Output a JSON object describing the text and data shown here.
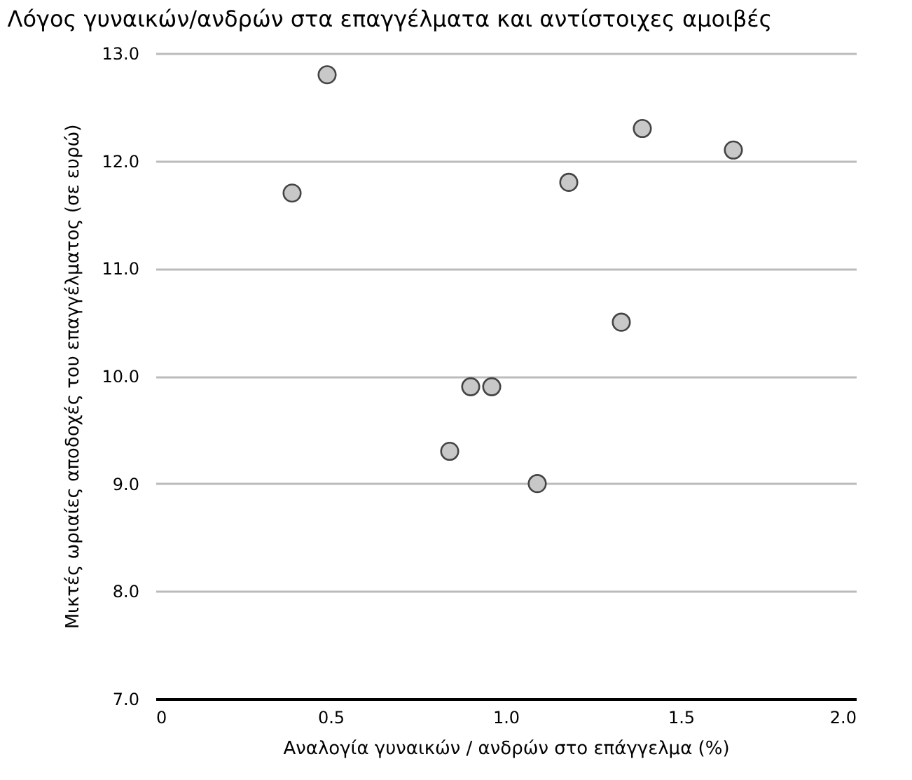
{
  "chart_data": {
    "type": "scatter",
    "title": "Λόγος γυναικών/ανδρών στα επαγγέλματα και αντίστοιχες αμοιβές",
    "xlabel": "Αναλογία γυναικών / ανδρών στο επάγγελμα (%)",
    "ylabel": "Μικτές ωριαίες αποδοχές του επαγγέλματος (σε ευρώ)",
    "x": [
      0.49,
      0.39,
      1.39,
      1.65,
      1.18,
      1.33,
      0.9,
      0.96,
      0.84,
      1.09
    ],
    "series": [
      {
        "color": "#c8c8c8",
        "values": [
          12.8,
          11.7,
          12.3,
          12.1,
          11.8,
          10.5,
          9.9,
          9.9,
          9.3,
          9.0
        ]
      }
    ],
    "xlim": [
      0,
      2
    ],
    "ylim": [
      7,
      13
    ],
    "xticks": [
      0,
      0.5,
      {
        "value": 1,
        "label": "1.0"
      },
      1.5,
      {
        "value": 2,
        "label": "2.0"
      }
    ],
    "yticks": [
      {
        "value": 7,
        "label": "7.0"
      },
      {
        "value": 8,
        "label": "8.0"
      },
      {
        "value": 9,
        "label": "9.0"
      },
      {
        "value": 10,
        "label": "10.0"
      },
      {
        "value": 11,
        "label": "11.0"
      },
      {
        "value": 12,
        "label": "12.0"
      },
      {
        "value": 13,
        "label": "13.0"
      }
    ],
    "grid": "y",
    "marker": "circle"
  }
}
